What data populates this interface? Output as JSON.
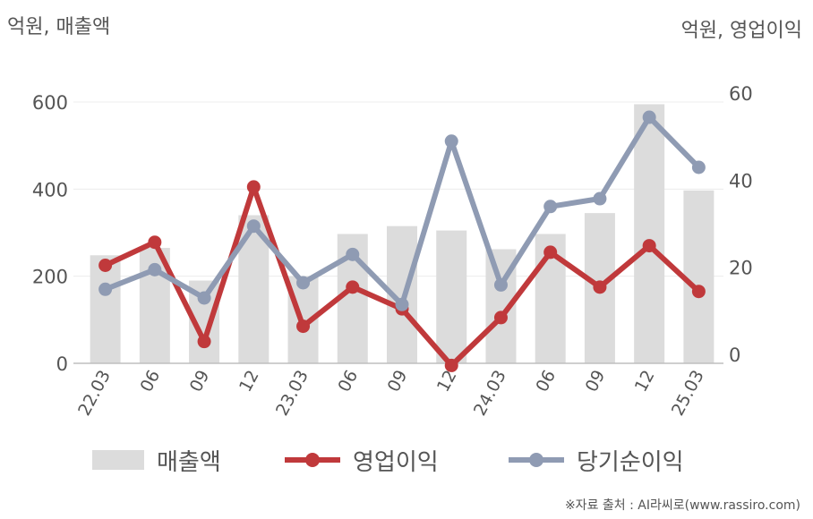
{
  "chart_data": {
    "type": "bar",
    "categories": [
      "22.03",
      "06",
      "09",
      "12",
      "23.03",
      "06",
      "09",
      "12",
      "24.03",
      "06",
      "09",
      "12",
      "25.03"
    ],
    "left_axis_label": "억원, 매출액",
    "right_axis_label": "억원, 영업이익",
    "left_ylim": [
      0,
      600
    ],
    "left_ticks": [
      "0",
      "200",
      "400",
      "600"
    ],
    "right_ylim": [
      0,
      60
    ],
    "right_ticks": [
      "0",
      "20",
      "40",
      "60"
    ],
    "grid": true,
    "legend_position": "bottom",
    "series": [
      {
        "name": "매출액",
        "type": "bar",
        "axis": "left",
        "color": "#dcdcdc",
        "values": [
          248,
          265,
          190,
          340,
          200,
          297,
          315,
          305,
          262,
          297,
          345,
          595,
          397
        ]
      },
      {
        "name": "영업이익",
        "type": "line",
        "axis": "right",
        "color": "#c0393b",
        "values": [
          22.5,
          27.8,
          5.0,
          40.5,
          8.5,
          17.5,
          12.5,
          -0.5,
          10.5,
          25.5,
          17.5,
          27.0,
          16.5
        ]
      },
      {
        "name": "당기순이익",
        "type": "line",
        "axis": "right",
        "color": "#8f9bb3",
        "values": [
          17.0,
          21.5,
          15.0,
          31.5,
          18.5,
          25.0,
          13.5,
          51.0,
          18.0,
          36.0,
          37.8,
          56.5,
          45.0
        ]
      }
    ]
  },
  "legend": {
    "bar_label": "매출액",
    "line1_label": "영업이익",
    "line2_label": "당기순이익"
  },
  "source": "※자료 출처 : AI라씨로(www.rassiro.com)"
}
